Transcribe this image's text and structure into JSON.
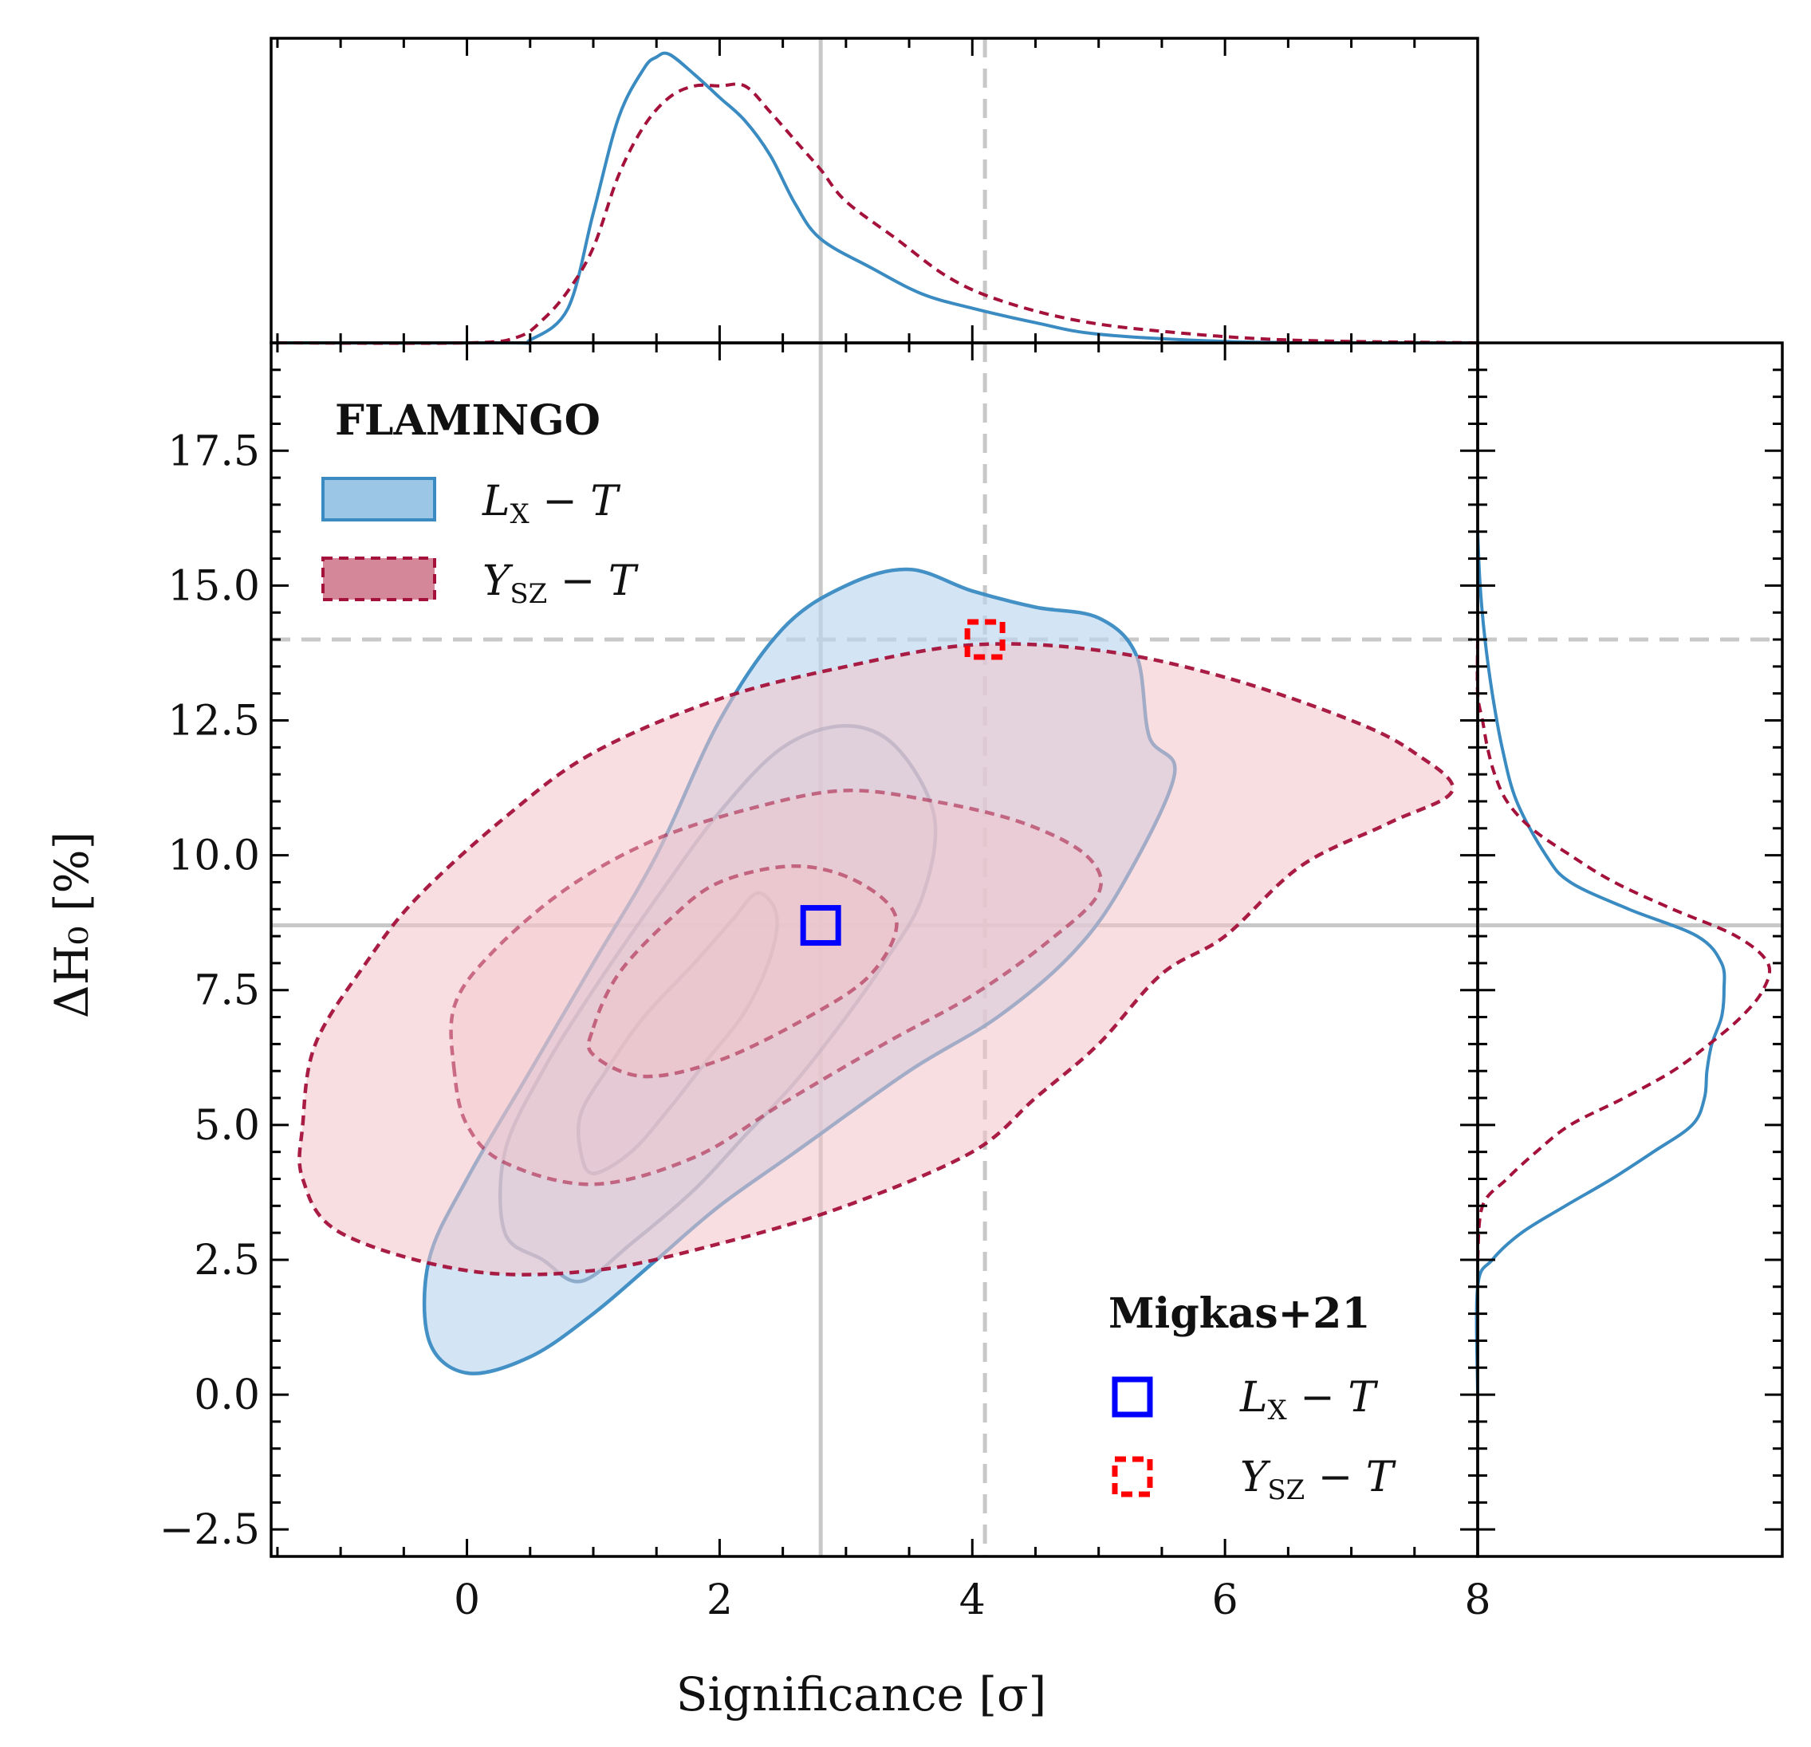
{
  "chart_data": {
    "type": "contour-corner",
    "xlabel": "Significance [σ]",
    "ylabel": "ΔH₀ [%]",
    "xlim": [
      -1.55,
      8.0
    ],
    "ylim": [
      -3.0,
      19.5
    ],
    "x_ticks": [
      0,
      2,
      4,
      6,
      8
    ],
    "x_tick_labels": [
      "0",
      "2",
      "4",
      "6",
      "8"
    ],
    "y_ticks": [
      -2.5,
      0.0,
      2.5,
      5.0,
      7.5,
      10.0,
      12.5,
      15.0,
      17.5
    ],
    "y_tick_labels": [
      "−2.5",
      "0.0",
      "2.5",
      "5.0",
      "7.5",
      "10.0",
      "12.5",
      "15.0",
      "17.5"
    ],
    "grid": false,
    "reference_lines": {
      "solid": {
        "x": 2.8,
        "y": 8.7
      },
      "dashed": {
        "x": 4.1,
        "y": 14.0
      }
    },
    "legend_flamingo": {
      "title": "FLAMINGO",
      "placement": "upper-left",
      "entries": [
        {
          "label_main": "L",
          "label_sub": "X",
          "label_rest": " − T",
          "color": "#3a8bc2",
          "fill": "#90c0e2",
          "style": "solid"
        },
        {
          "label_main": "Y",
          "label_sub": "SZ",
          "label_rest": " − T",
          "color": "#a4113a",
          "fill": "#cf7a8d",
          "style": "dashed"
        }
      ]
    },
    "legend_migkas": {
      "title": "Migkas+21",
      "placement": "lower-right",
      "entries": [
        {
          "label_main": "L",
          "label_sub": "X",
          "label_rest": " − T",
          "color": "#0000ff",
          "style": "solid"
        },
        {
          "label_main": "Y",
          "label_sub": "SZ",
          "label_rest": " − T",
          "color": "#ff0000",
          "style": "dashed"
        }
      ]
    },
    "migkas_points": [
      {
        "name": "Lx-T",
        "x": 2.8,
        "y": 8.7,
        "color": "#0000ff",
        "style": "solid"
      },
      {
        "name": "Ysz-T",
        "x": 4.1,
        "y": 14.0,
        "color": "#ff0000",
        "style": "dashed"
      }
    ],
    "series": [
      {
        "name": "Lx-T",
        "color": "#3a8bc2",
        "fill": "#bcd6f0",
        "style": "solid",
        "contours": [
          {
            "level": "outer",
            "points": [
              [
                0.0,
                0.4
              ],
              [
                -0.3,
                1.0
              ],
              [
                -0.3,
                2.5
              ],
              [
                0.0,
                4.0
              ],
              [
                0.5,
                6.0
              ],
              [
                1.0,
                8.0
              ],
              [
                1.5,
                10.0
              ],
              [
                2.0,
                12.5
              ],
              [
                2.5,
                14.2
              ],
              [
                3.0,
                15.0
              ],
              [
                3.5,
                15.3
              ],
              [
                4.0,
                14.9
              ],
              [
                4.5,
                14.6
              ],
              [
                5.0,
                14.4
              ],
              [
                5.3,
                13.7
              ],
              [
                5.4,
                12.2
              ],
              [
                5.6,
                11.5
              ],
              [
                5.2,
                9.5
              ],
              [
                4.8,
                8.2
              ],
              [
                4.2,
                7.0
              ],
              [
                3.5,
                6.0
              ],
              [
                2.6,
                4.5
              ],
              [
                2.0,
                3.5
              ],
              [
                1.5,
                2.5
              ],
              [
                1.0,
                1.5
              ],
              [
                0.5,
                0.7
              ]
            ]
          },
          {
            "level": "middle",
            "points": [
              [
                0.6,
                2.5
              ],
              [
                0.3,
                3.0
              ],
              [
                0.3,
                4.5
              ],
              [
                0.6,
                6.0
              ],
              [
                1.0,
                7.5
              ],
              [
                1.5,
                9.2
              ],
              [
                2.0,
                10.8
              ],
              [
                2.5,
                12.0
              ],
              [
                3.0,
                12.4
              ],
              [
                3.4,
                12.0
              ],
              [
                3.7,
                10.7
              ],
              [
                3.6,
                9.2
              ],
              [
                3.3,
                8.0
              ],
              [
                3.0,
                7.0
              ],
              [
                2.6,
                5.8
              ],
              [
                2.2,
                4.8
              ],
              [
                1.8,
                3.8
              ],
              [
                1.3,
                2.8
              ],
              [
                0.9,
                2.1
              ]
            ]
          },
          {
            "level": "inner",
            "points": [
              [
                0.9,
                4.5
              ],
              [
                0.9,
                5.2
              ],
              [
                1.1,
                6.0
              ],
              [
                1.4,
                7.0
              ],
              [
                1.8,
                8.0
              ],
              [
                2.1,
                8.8
              ],
              [
                2.3,
                9.3
              ],
              [
                2.45,
                8.9
              ],
              [
                2.4,
                8.1
              ],
              [
                2.2,
                7.1
              ],
              [
                1.9,
                6.2
              ],
              [
                1.6,
                5.3
              ],
              [
                1.3,
                4.5
              ],
              [
                1.0,
                4.1
              ]
            ]
          }
        ]
      },
      {
        "name": "Ysz-T",
        "color": "#a4113a",
        "fill": "#f2c3c9",
        "style": "dashed",
        "contours": [
          {
            "level": "outer",
            "points": [
              [
                -1.3,
                5.0
              ],
              [
                -1.2,
                6.5
              ],
              [
                -0.8,
                8.0
              ],
              [
                -0.4,
                9.2
              ],
              [
                0.3,
                10.7
              ],
              [
                1.0,
                11.9
              ],
              [
                2.0,
                12.9
              ],
              [
                3.0,
                13.5
              ],
              [
                4.0,
                13.9
              ],
              [
                5.0,
                13.8
              ],
              [
                6.0,
                13.3
              ],
              [
                7.0,
                12.5
              ],
              [
                7.5,
                11.9
              ],
              [
                7.8,
                11.2
              ],
              [
                7.3,
                10.6
              ],
              [
                6.6,
                9.8
              ],
              [
                6.0,
                8.5
              ],
              [
                5.5,
                7.8
              ],
              [
                5.0,
                6.5
              ],
              [
                4.5,
                5.5
              ],
              [
                4.0,
                4.5
              ],
              [
                3.0,
                3.5
              ],
              [
                2.0,
                2.8
              ],
              [
                1.0,
                2.3
              ],
              [
                0.0,
                2.3
              ],
              [
                -1.0,
                3.0
              ],
              [
                -1.3,
                4.0
              ]
            ]
          },
          {
            "level": "middle",
            "points": [
              [
                -0.1,
                6.0
              ],
              [
                -0.1,
                7.2
              ],
              [
                0.2,
                8.2
              ],
              [
                0.8,
                9.4
              ],
              [
                1.5,
                10.3
              ],
              [
                2.3,
                10.9
              ],
              [
                3.0,
                11.2
              ],
              [
                3.7,
                11.0
              ],
              [
                4.4,
                10.6
              ],
              [
                4.9,
                10.0
              ],
              [
                5.0,
                9.3
              ],
              [
                4.6,
                8.4
              ],
              [
                4.0,
                7.4
              ],
              [
                3.3,
                6.5
              ],
              [
                2.5,
                5.4
              ],
              [
                1.8,
                4.4
              ],
              [
                1.0,
                3.9
              ],
              [
                0.3,
                4.3
              ],
              [
                0.0,
                5.0
              ]
            ]
          },
          {
            "level": "inner",
            "points": [
              [
                1.0,
                6.8
              ],
              [
                1.2,
                7.8
              ],
              [
                1.6,
                8.8
              ],
              [
                2.0,
                9.5
              ],
              [
                2.6,
                9.8
              ],
              [
                3.1,
                9.5
              ],
              [
                3.4,
                8.8
              ],
              [
                3.2,
                7.8
              ],
              [
                2.7,
                7.0
              ],
              [
                2.0,
                6.2
              ],
              [
                1.4,
                5.9
              ],
              [
                1.0,
                6.3
              ]
            ]
          }
        ]
      }
    ],
    "marginal_x": [
      {
        "name": "Lx-T",
        "color": "#3a8bc2",
        "style": "solid",
        "x": [
          -1.5,
          0.3,
          0.5,
          0.8,
          1.0,
          1.2,
          1.4,
          1.5,
          1.6,
          1.8,
          2.0,
          2.2,
          2.4,
          2.6,
          2.8,
          3.2,
          3.6,
          4.0,
          4.5,
          5.0,
          6.0,
          7.0,
          8.0
        ],
        "density": [
          0.0,
          0.0,
          0.01,
          0.12,
          0.45,
          0.78,
          0.95,
          0.99,
          1.0,
          0.93,
          0.85,
          0.77,
          0.65,
          0.48,
          0.36,
          0.26,
          0.17,
          0.12,
          0.07,
          0.03,
          0.005,
          0.0,
          0.0
        ]
      },
      {
        "name": "Ysz-T",
        "color": "#a4113a",
        "style": "dashed",
        "x": [
          -1.5,
          0.0,
          0.4,
          0.6,
          0.8,
          1.0,
          1.2,
          1.4,
          1.6,
          1.8,
          2.0,
          2.2,
          2.4,
          2.6,
          2.8,
          3.0,
          3.4,
          3.8,
          4.2,
          4.8,
          5.5,
          6.5,
          8.0
        ],
        "density": [
          0.0,
          0.0,
          0.02,
          0.08,
          0.18,
          0.33,
          0.58,
          0.75,
          0.85,
          0.89,
          0.89,
          0.89,
          0.8,
          0.7,
          0.6,
          0.49,
          0.36,
          0.23,
          0.15,
          0.08,
          0.04,
          0.01,
          0.0
        ]
      }
    ],
    "marginal_y": [
      {
        "name": "Lx-T",
        "color": "#3a8bc2",
        "style": "solid",
        "y": [
          0.0,
          2.0,
          2.5,
          3.0,
          3.5,
          4.0,
          4.5,
          5.0,
          5.5,
          6.0,
          6.5,
          7.0,
          7.5,
          8.0,
          8.5,
          9.0,
          9.5,
          10.0,
          11.0,
          12.0,
          13.0,
          14.0,
          15.0,
          16.0
        ],
        "density": [
          0.0,
          0.0,
          0.06,
          0.18,
          0.36,
          0.55,
          0.72,
          0.88,
          0.93,
          0.94,
          0.96,
          1.0,
          1.01,
          1.0,
          0.9,
          0.62,
          0.38,
          0.28,
          0.16,
          0.1,
          0.06,
          0.03,
          0.01,
          0.0
        ]
      },
      {
        "name": "Ysz-T",
        "color": "#a4113a",
        "style": "dashed",
        "y": [
          2.5,
          3.5,
          4.0,
          4.5,
          5.0,
          5.5,
          6.0,
          6.5,
          7.0,
          7.5,
          8.0,
          8.5,
          9.0,
          9.5,
          10.0,
          10.5,
          11.0,
          11.5,
          12.0,
          12.5,
          13.0,
          14.0
        ],
        "density": [
          0.0,
          0.02,
          0.12,
          0.24,
          0.38,
          0.6,
          0.8,
          0.95,
          1.08,
          1.17,
          1.19,
          1.06,
          0.8,
          0.56,
          0.38,
          0.22,
          0.12,
          0.07,
          0.04,
          0.02,
          0.0,
          0.0
        ]
      }
    ]
  }
}
